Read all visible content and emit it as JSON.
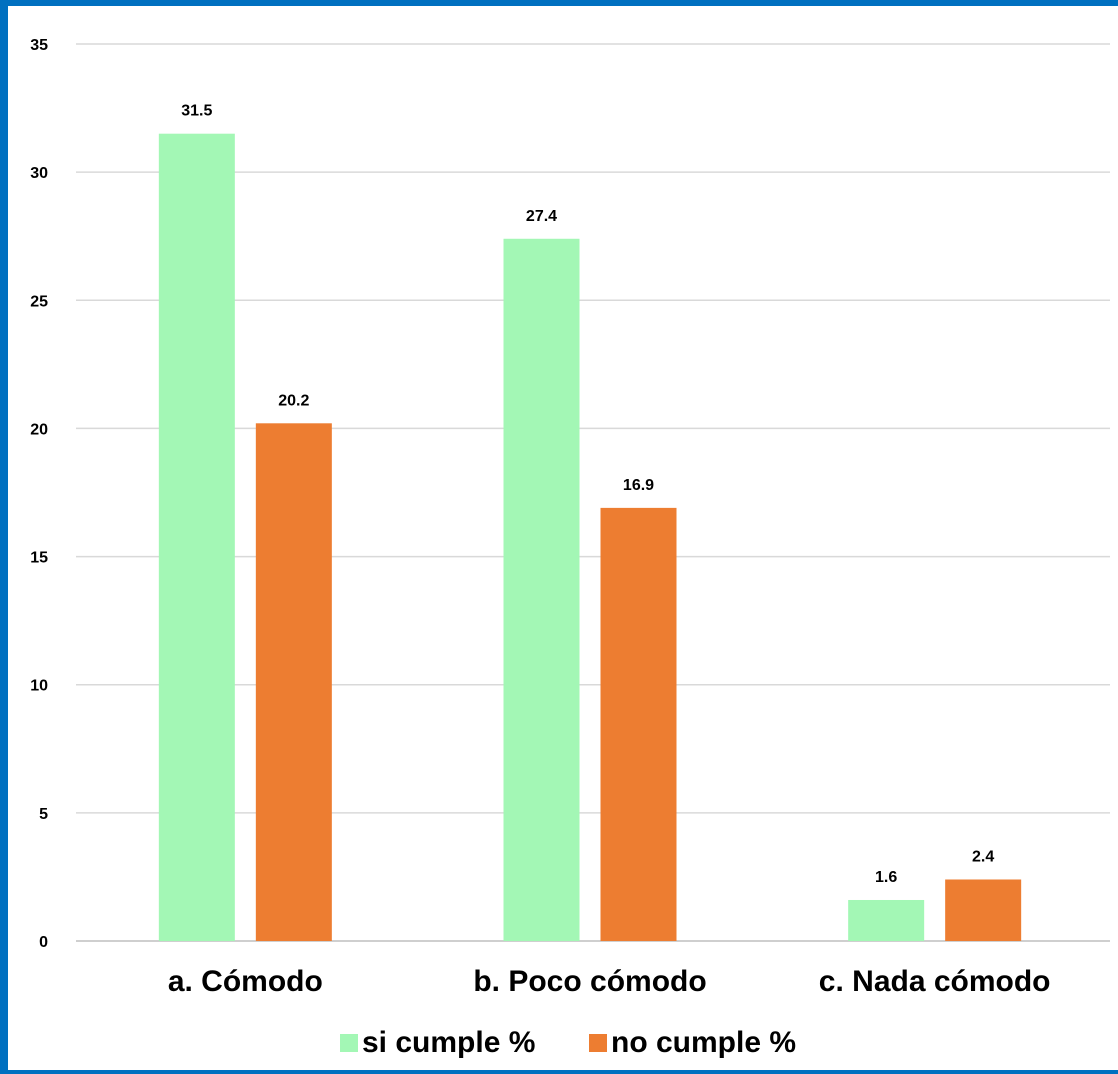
{
  "chart_data": {
    "type": "bar",
    "title": "",
    "xlabel": "",
    "ylabel": "",
    "categories": [
      "a. Cómodo",
      "b. Poco cómodo",
      "c. Nada cómodo"
    ],
    "series": [
      {
        "name": "si cumple %",
        "color": "#a3f7b5",
        "values": [
          31.5,
          27.4,
          1.6
        ]
      },
      {
        "name": "no cumple %",
        "color": "#ed7d31",
        "values": [
          20.2,
          16.9,
          2.4
        ]
      }
    ],
    "ylim": [
      0,
      35
    ],
    "yticks": [
      "0",
      "5",
      "10",
      "15",
      "20",
      "25",
      "30",
      "35"
    ],
    "grid": true,
    "legend_position": "bottom"
  }
}
